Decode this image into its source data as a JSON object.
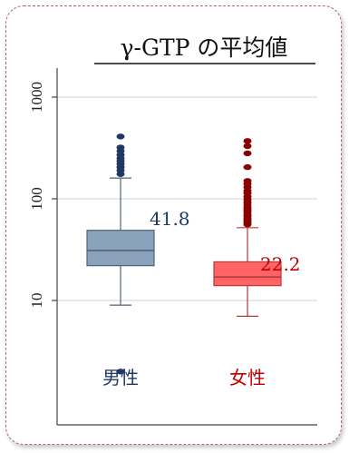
{
  "chart_data": {
    "type": "boxplot",
    "title": "γ-GTP の平均値",
    "yscale": "log",
    "ylim": [
      2,
      1000
    ],
    "yticks": [
      10,
      100,
      1000
    ],
    "ytick_labels": [
      "10",
      "100",
      "1000"
    ],
    "grid": true,
    "series": [
      {
        "name": "男性",
        "color": "#8aa2bb",
        "edge": "#4f6378",
        "label_color": "#1f3864",
        "mean_label": "41.8",
        "whisker_low": 9,
        "q1": 22,
        "median": 31,
        "q3": 49,
        "whisker_high": 160,
        "outliers": [
          2,
          175,
          190,
          205,
          220,
          235,
          250,
          270,
          295,
          320,
          410
        ]
      },
      {
        "name": "女性",
        "color": "#ff6363",
        "edge": "#b53a3a",
        "label_color": "#c00000",
        "mean_label": "22.2",
        "whisker_low": 7,
        "q1": 14,
        "median": 17,
        "q3": 24,
        "whisker_high": 52,
        "outliers": [
          56,
          58,
          61,
          64,
          67,
          70,
          74,
          78,
          82,
          87,
          92,
          98,
          105,
          113,
          120,
          130,
          140,
          150,
          205,
          280,
          330,
          370
        ]
      }
    ]
  }
}
